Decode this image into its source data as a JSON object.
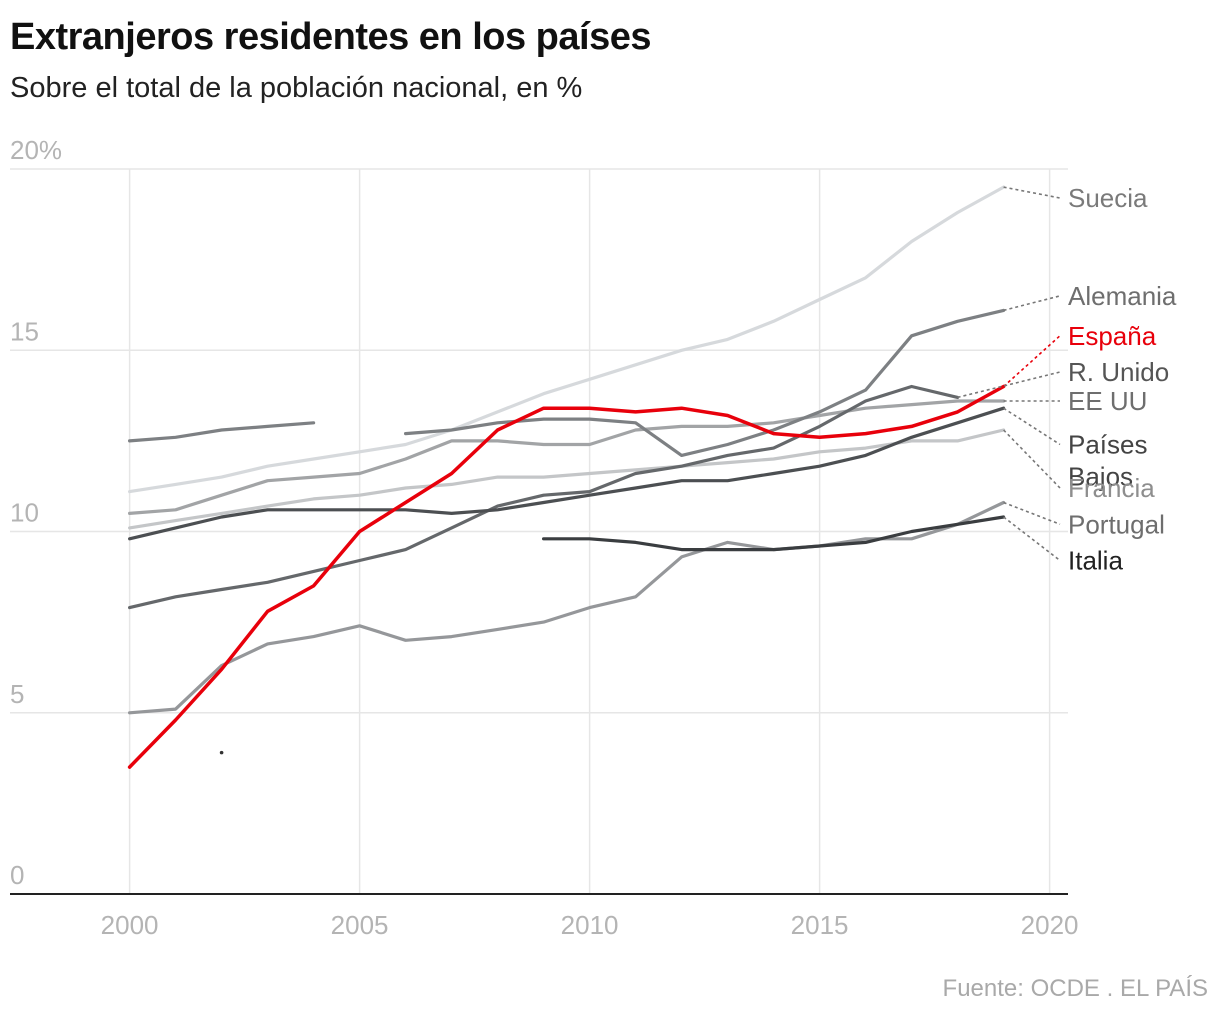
{
  "header": {
    "title": "Extranjeros residentes en los países",
    "subtitle": "Sobre el total de la población nacional, en %"
  },
  "footer": {
    "source": "Fuente: OCDE . EL PAÍS"
  },
  "chart_data": {
    "type": "line",
    "title": "Extranjeros residentes en los países",
    "subtitle": "Sobre el total de la población nacional, en %",
    "xlabel": "",
    "ylabel": "",
    "xlim": [
      1997.4,
      2020.4
    ],
    "ylim": [
      0,
      20
    ],
    "x_ticks": [
      2000,
      2005,
      2010,
      2015,
      2020
    ],
    "y_ticks": [
      {
        "value": 0,
        "label": "0"
      },
      {
        "value": 5,
        "label": "5"
      },
      {
        "value": 10,
        "label": "10"
      },
      {
        "value": 15,
        "label": "15"
      },
      {
        "value": 20,
        "label": "20%"
      }
    ],
    "grid": true,
    "legend": "direct labels at right",
    "series": [
      {
        "name": "Suecia",
        "color": "#d6d9dc",
        "label_color": "#7a7a7a",
        "x": [
          2000,
          2001,
          2002,
          2003,
          2004,
          2005,
          2006,
          2007,
          2008,
          2009,
          2010,
          2011,
          2012,
          2013,
          2014,
          2015,
          2016,
          2017,
          2018,
          2019
        ],
        "values": [
          11.1,
          11.3,
          11.5,
          11.8,
          12.0,
          12.2,
          12.4,
          12.8,
          13.3,
          13.8,
          14.2,
          14.6,
          15.0,
          15.3,
          15.8,
          16.4,
          17.0,
          18.0,
          18.8,
          19.5
        ]
      },
      {
        "name": "Francia",
        "color": "#c4c6c8",
        "label_color": "#8e8e8e",
        "x": [
          2000,
          2001,
          2002,
          2003,
          2004,
          2005,
          2006,
          2007,
          2008,
          2009,
          2010,
          2011,
          2012,
          2013,
          2014,
          2015,
          2016,
          2017,
          2018,
          2019
        ],
        "values": [
          10.1,
          10.3,
          10.5,
          10.7,
          10.9,
          11.0,
          11.2,
          11.3,
          11.5,
          11.5,
          11.6,
          11.7,
          11.8,
          11.9,
          12.0,
          12.2,
          12.3,
          12.5,
          12.5,
          12.8
        ]
      },
      {
        "name": "EE UU",
        "color": "#a2a4a6",
        "label_color": "#6e6e6e",
        "x": [
          2000,
          2001,
          2002,
          2003,
          2004,
          2005,
          2006,
          2007,
          2008,
          2009,
          2010,
          2011,
          2012,
          2013,
          2014,
          2015,
          2016,
          2017,
          2018,
          2019
        ],
        "values": [
          10.5,
          10.6,
          11.0,
          11.4,
          11.5,
          11.6,
          12.0,
          12.5,
          12.5,
          12.4,
          12.4,
          12.8,
          12.9,
          12.9,
          13.0,
          13.2,
          13.4,
          13.5,
          13.6,
          13.6
        ]
      },
      {
        "name": "Portugal",
        "color": "#95979a",
        "label_color": "#6e6e6e",
        "x": [
          2000,
          2001,
          2002,
          2003,
          2004,
          2005,
          2006,
          2007,
          2008,
          2009,
          2010,
          2011,
          2012,
          2013,
          2014,
          2015,
          2016,
          2017,
          2018,
          2019
        ],
        "values": [
          5.0,
          5.1,
          6.3,
          6.9,
          7.1,
          7.4,
          7.0,
          7.1,
          7.3,
          7.5,
          7.9,
          8.2,
          9.3,
          9.7,
          9.5,
          9.6,
          9.8,
          9.8,
          10.2,
          10.8
        ]
      },
      {
        "name": "Alemania",
        "color": "#7d8083",
        "label_color": "#6e6e6e",
        "x": [
          2000,
          2001,
          2002,
          2003,
          2004,
          null,
          2006,
          2007,
          2008,
          2009,
          2010,
          2011,
          2012,
          2013,
          2014,
          2015,
          2016,
          2017,
          2018,
          2019
        ],
        "values": [
          12.5,
          12.6,
          12.8,
          12.9,
          13.0,
          null,
          12.7,
          12.8,
          13.0,
          13.1,
          13.1,
          13.0,
          12.1,
          12.4,
          12.8,
          13.3,
          13.9,
          15.4,
          15.8,
          16.1
        ]
      },
      {
        "name": "R. Unido",
        "color": "#65686b",
        "label_color": "#555555",
        "x": [
          2000,
          2001,
          2002,
          2003,
          2004,
          2005,
          2006,
          2007,
          2008,
          2009,
          2010,
          2011,
          2012,
          2013,
          2014,
          2015,
          2016,
          2017,
          2018
        ],
        "values": [
          7.9,
          8.2,
          8.4,
          8.6,
          8.9,
          9.2,
          9.5,
          10.1,
          10.7,
          11.0,
          11.1,
          11.6,
          11.8,
          12.1,
          12.3,
          12.9,
          13.6,
          14.0,
          13.7
        ]
      },
      {
        "name": "Países Bajos",
        "color": "#4c4f52",
        "label_color": "#444444",
        "x": [
          2000,
          2001,
          2002,
          2003,
          2004,
          2005,
          2006,
          2007,
          2008,
          2009,
          2010,
          2011,
          2012,
          2013,
          2014,
          2015,
          2016,
          2017,
          2018,
          2019
        ],
        "values": [
          9.8,
          10.1,
          10.4,
          10.6,
          10.6,
          10.6,
          10.6,
          10.5,
          10.6,
          10.8,
          11.0,
          11.2,
          11.4,
          11.4,
          11.6,
          11.8,
          12.1,
          12.6,
          13.0,
          13.4
        ]
      },
      {
        "name": "Italia",
        "color": "#3a3d40",
        "label_color": "#222222",
        "x": [
          2009,
          2010,
          2011,
          2012,
          2013,
          2014,
          2015,
          2016,
          2017,
          2018,
          2019
        ],
        "values": [
          9.8,
          9.8,
          9.7,
          9.5,
          9.5,
          9.5,
          9.6,
          9.7,
          10.0,
          10.2,
          10.4
        ]
      },
      {
        "name": "España",
        "color": "#e8000b",
        "label_color": "#e8000b",
        "x": [
          2000,
          2001,
          2002,
          2003,
          2004,
          2005,
          2006,
          2007,
          2008,
          2009,
          2010,
          2011,
          2012,
          2013,
          2014,
          2015,
          2016,
          2017,
          2018,
          2019
        ],
        "values": [
          3.5,
          4.8,
          6.2,
          7.8,
          8.5,
          10.0,
          10.8,
          11.6,
          12.8,
          13.4,
          13.4,
          13.3,
          13.4,
          13.2,
          12.7,
          12.6,
          12.7,
          12.9,
          13.3,
          14.0
        ]
      }
    ],
    "labels": [
      {
        "name": "Suecia",
        "text": "Suecia",
        "from_x": 2019,
        "from_y": 19.5,
        "label_y": 19.2
      },
      {
        "name": "Alemania",
        "text": "Alemania",
        "from_x": 2019,
        "from_y": 16.1,
        "label_y": 16.5
      },
      {
        "name": "España",
        "text": "España",
        "from_x": 2019,
        "from_y": 14.0,
        "label_y": 15.4
      },
      {
        "name": "R. Unido",
        "text": "R. Unido",
        "from_x": 2018,
        "from_y": 13.7,
        "label_y": 14.4
      },
      {
        "name": "EE UU",
        "text": "EE UU",
        "from_x": 2019,
        "from_y": 13.6,
        "label_y": 13.6
      },
      {
        "name": "Países Bajos",
        "text": "Países",
        "text2": "Bajos",
        "from_x": 2019,
        "from_y": 13.4,
        "label_y": 12.4
      },
      {
        "name": "Francia",
        "text": "Francia",
        "from_x": 2019,
        "from_y": 12.8,
        "label_y": 11.2
      },
      {
        "name": "Portugal",
        "text": "Portugal",
        "from_x": 2019,
        "from_y": 10.8,
        "label_y": 10.2
      },
      {
        "name": "Italia",
        "text": "Italia",
        "from_x": 2019,
        "from_y": 10.4,
        "label_y": 9.2
      }
    ],
    "markers": [
      {
        "x": 2002,
        "y": 3.9
      }
    ]
  }
}
